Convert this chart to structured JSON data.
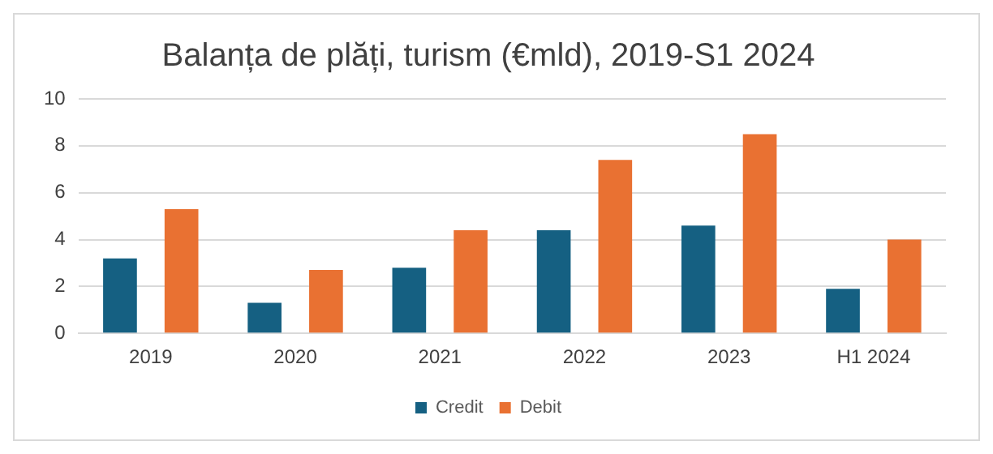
{
  "chart_data": {
    "type": "bar",
    "title": "Balanța de plăți, turism (€mld), 2019-S1 2024",
    "categories": [
      "2019",
      "2020",
      "2021",
      "2022",
      "2023",
      "H1 2024"
    ],
    "series": [
      {
        "name": "Credit",
        "color": "#156082",
        "values": [
          3.2,
          1.3,
          2.8,
          4.4,
          4.6,
          1.9
        ]
      },
      {
        "name": "Debit",
        "color": "#e97132",
        "values": [
          5.3,
          2.7,
          4.4,
          7.4,
          8.5,
          4.0
        ]
      }
    ],
    "ylim": [
      0,
      10
    ],
    "yticks": [
      0,
      2,
      4,
      6,
      8,
      10
    ],
    "grid": "y",
    "legend": "bottom"
  }
}
